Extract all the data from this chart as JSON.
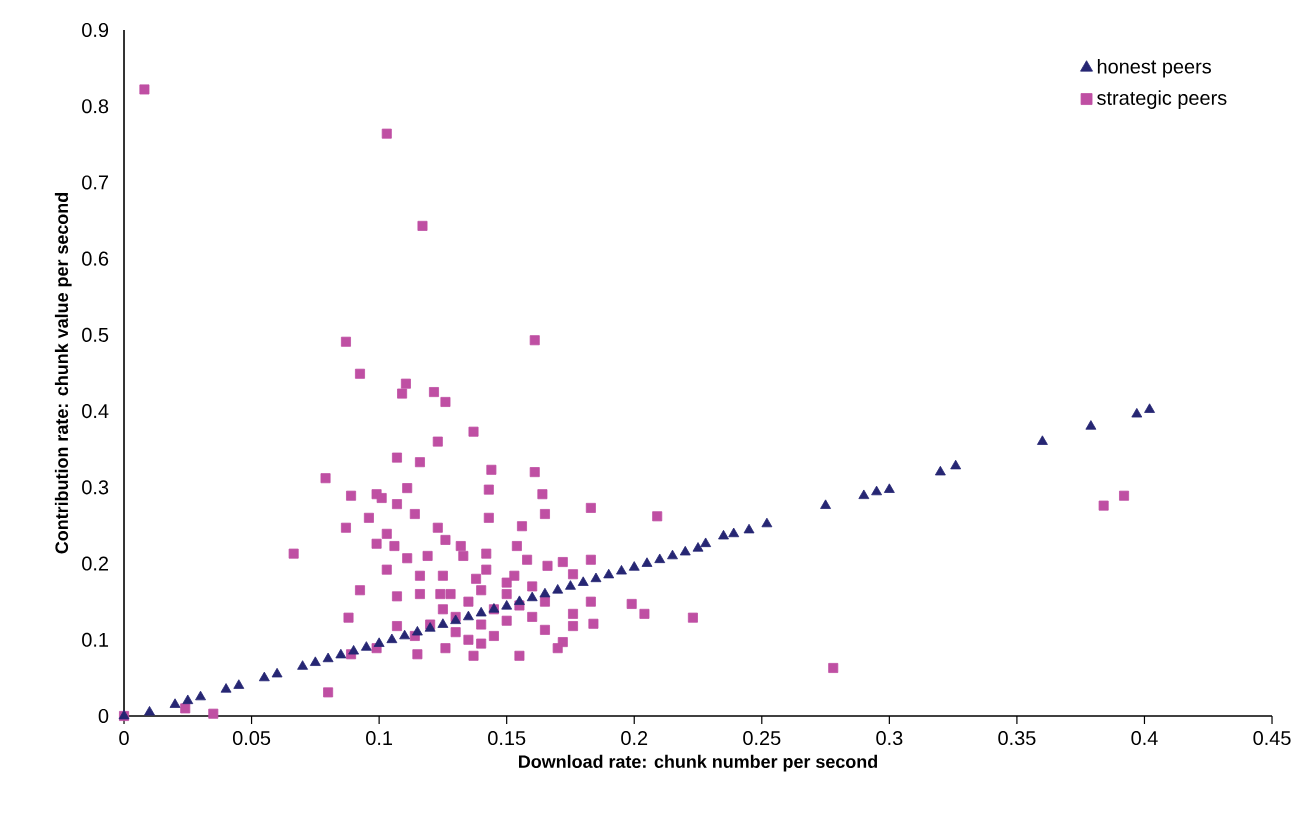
{
  "chart_data": {
    "type": "scatter",
    "xlabel": "Download rate: chunk number per second",
    "ylabel": "Contribution rate: chunk value per second",
    "xlim": [
      0,
      0.45
    ],
    "ylim": [
      0,
      0.9
    ],
    "xticks": [
      0,
      0.05,
      0.1,
      0.15,
      0.2,
      0.25,
      0.3,
      0.35,
      0.4,
      0.45
    ],
    "yticks": [
      0,
      0.1,
      0.2,
      0.3,
      0.4,
      0.5,
      0.6,
      0.7,
      0.8,
      0.9
    ],
    "legend": "top right",
    "grid": false,
    "series": [
      {
        "name": "honest peers",
        "color": "#262673",
        "marker": "triangle",
        "x": [
          0,
          0.01,
          0.02,
          0.025,
          0.03,
          0.04,
          0.045,
          0.055,
          0.06,
          0.07,
          0.075,
          0.08,
          0.085,
          0.09,
          0.095,
          0.1,
          0.105,
          0.11,
          0.115,
          0.12,
          0.125,
          0.13,
          0.135,
          0.14,
          0.145,
          0.15,
          0.155,
          0.16,
          0.165,
          0.17,
          0.175,
          0.18,
          0.185,
          0.19,
          0.195,
          0.2,
          0.205,
          0.21,
          0.215,
          0.22,
          0.225,
          0.228,
          0.235,
          0.239,
          0.245,
          0.252,
          0.275,
          0.29,
          0.295,
          0.3,
          0.32,
          0.326,
          0.36,
          0.379,
          0.397,
          0.402
        ],
        "values": [
          0,
          0.005,
          0.015,
          0.02,
          0.025,
          0.035,
          0.04,
          0.05,
          0.055,
          0.065,
          0.07,
          0.075,
          0.08,
          0.085,
          0.09,
          0.095,
          0.1,
          0.105,
          0.11,
          0.115,
          0.12,
          0.125,
          0.13,
          0.135,
          0.14,
          0.144,
          0.15,
          0.155,
          0.16,
          0.165,
          0.17,
          0.175,
          0.18,
          0.185,
          0.19,
          0.195,
          0.2,
          0.205,
          0.21,
          0.215,
          0.22,
          0.226,
          0.236,
          0.239,
          0.244,
          0.252,
          0.276,
          0.289,
          0.294,
          0.297,
          0.32,
          0.328,
          0.36,
          0.38,
          0.396,
          0.402
        ]
      },
      {
        "name": "strategic peers",
        "color": "#bf4fa3",
        "marker": "square",
        "x": [
          0.008,
          0.103,
          0.117,
          0.087,
          0.161,
          0.0925,
          0.1105,
          0.109,
          0.1215,
          0.126,
          0.137,
          0.123,
          0.107,
          0.116,
          0.144,
          0.079,
          0.089,
          0.099,
          0.101,
          0.107,
          0.111,
          0.114,
          0.096,
          0.143,
          0.143,
          0.087,
          0.123,
          0.103,
          0.126,
          0.099,
          0.106,
          0.132,
          0.0665,
          0.111,
          0.119,
          0.133,
          0.142,
          0.103,
          0.116,
          0.125,
          0.142,
          0.0925,
          0.107,
          0.116,
          0.124,
          0.088,
          0.107,
          0.114,
          0.099,
          0.089,
          0.115,
          0.126,
          0.137,
          0.08,
          0.024,
          0.035,
          0,
          0.161,
          0.164,
          0.165,
          0.183,
          0.209,
          0.156,
          0.154,
          0.158,
          0.166,
          0.172,
          0.183,
          0.153,
          0.176,
          0.183,
          0.199,
          0.204,
          0.223,
          0.176,
          0.184,
          0.176,
          0.165,
          0.172,
          0.17,
          0.155,
          0.278,
          0.384,
          0.392,
          0.13,
          0.135,
          0.14,
          0.145,
          0.15,
          0.14,
          0.13,
          0.125,
          0.15,
          0.155,
          0.16,
          0.145,
          0.135,
          0.14,
          0.12,
          0.128,
          0.16,
          0.165,
          0.15,
          0.138
        ],
        "values": [
          0.822,
          0.764,
          0.643,
          0.491,
          0.493,
          0.449,
          0.436,
          0.423,
          0.425,
          0.412,
          0.373,
          0.36,
          0.339,
          0.333,
          0.323,
          0.312,
          0.289,
          0.291,
          0.286,
          0.278,
          0.299,
          0.265,
          0.26,
          0.297,
          0.26,
          0.247,
          0.247,
          0.239,
          0.231,
          0.226,
          0.223,
          0.223,
          0.213,
          0.207,
          0.21,
          0.21,
          0.213,
          0.192,
          0.184,
          0.184,
          0.192,
          0.165,
          0.157,
          0.16,
          0.16,
          0.129,
          0.118,
          0.105,
          0.089,
          0.081,
          0.081,
          0.089,
          0.079,
          0.031,
          0.01,
          0.003,
          0,
          0.32,
          0.291,
          0.265,
          0.273,
          0.262,
          0.249,
          0.223,
          0.205,
          0.197,
          0.202,
          0.205,
          0.184,
          0.186,
          0.15,
          0.147,
          0.134,
          0.129,
          0.134,
          0.121,
          0.118,
          0.113,
          0.097,
          0.089,
          0.079,
          0.063,
          0.276,
          0.289,
          0.13,
          0.15,
          0.12,
          0.14,
          0.16,
          0.165,
          0.11,
          0.14,
          0.125,
          0.145,
          0.17,
          0.105,
          0.1,
          0.095,
          0.12,
          0.16,
          0.13,
          0.15,
          0.175,
          0.18
        ]
      }
    ]
  }
}
